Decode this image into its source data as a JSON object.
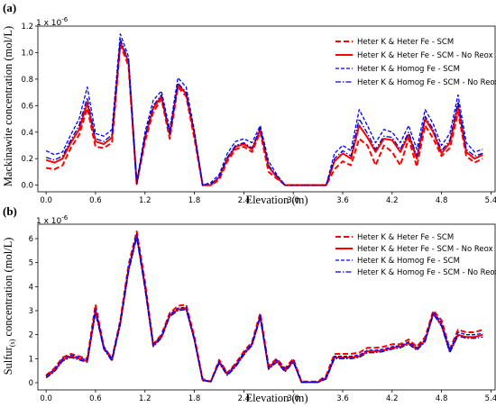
{
  "chart_data": [
    {
      "type": "line",
      "panel_label": "(a)",
      "multiplier_label": "1 x 10",
      "multiplier_exp": "-6",
      "xlabel": "Elevation (m)",
      "ylabel": "Mackinawite  concentration (mol/L)",
      "xlim": [
        -0.1,
        5.45
      ],
      "ylim": [
        -0.05,
        1.2
      ],
      "xticks": [
        "0.0",
        "0.6",
        "1.2",
        "1.8",
        "2.4",
        "3.0",
        "3.6",
        "4.2",
        "4.8",
        "5.4"
      ],
      "yticks": [
        "0.0",
        "0.2",
        "0.4",
        "0.6",
        "0.8",
        "1.0",
        "1.2"
      ],
      "legend_position": "top-right",
      "x": [
        0,
        0.1,
        0.2,
        0.3,
        0.4,
        0.5,
        0.6,
        0.7,
        0.8,
        0.9,
        1.0,
        1.1,
        1.2,
        1.3,
        1.4,
        1.5,
        1.6,
        1.7,
        1.8,
        1.9,
        2.0,
        2.1,
        2.2,
        2.3,
        2.4,
        2.5,
        2.6,
        2.7,
        2.8,
        2.9,
        3.0,
        3.1,
        3.2,
        3.3,
        3.4,
        3.5,
        3.6,
        3.7,
        3.8,
        3.9,
        4.0,
        4.1,
        4.2,
        4.3,
        4.4,
        4.5,
        4.6,
        4.7,
        4.8,
        4.9,
        5.0,
        5.1,
        5.2,
        5.3
      ],
      "series": [
        {
          "name": "Heter K & Heter Fe - SCM",
          "color": "#ff0000",
          "style": "dashed",
          "values": [
            0.13,
            0.12,
            0.15,
            0.28,
            0.38,
            0.58,
            0.29,
            0.28,
            0.32,
            1.06,
            0.9,
            0.01,
            0.33,
            0.55,
            0.65,
            0.35,
            0.74,
            0.67,
            0.35,
            0,
            0,
            0.04,
            0.18,
            0.27,
            0.29,
            0.25,
            0.4,
            0.1,
            0.05,
            0,
            0,
            0,
            0,
            0,
            0,
            0.12,
            0.18,
            0.15,
            0.35,
            0.3,
            0.15,
            0.3,
            0.25,
            0.15,
            0.35,
            0.14,
            0.45,
            0.35,
            0.22,
            0.28,
            0.55,
            0.22,
            0.17,
            0.2
          ]
        },
        {
          "name": "Heter K & Heter Fe - SCM - No Reox",
          "color": "#ff0000",
          "style": "solid",
          "values": [
            0.19,
            0.17,
            0.2,
            0.32,
            0.42,
            0.62,
            0.33,
            0.31,
            0.36,
            1.08,
            0.93,
            0.01,
            0.36,
            0.58,
            0.67,
            0.38,
            0.76,
            0.69,
            0.38,
            0,
            0,
            0.06,
            0.2,
            0.29,
            0.31,
            0.27,
            0.42,
            0.14,
            0.06,
            0,
            0,
            0,
            0,
            0,
            0,
            0.18,
            0.24,
            0.2,
            0.45,
            0.36,
            0.25,
            0.35,
            0.34,
            0.25,
            0.38,
            0.2,
            0.5,
            0.4,
            0.24,
            0.32,
            0.6,
            0.25,
            0.2,
            0.23
          ]
        },
        {
          "name": "Heter K & Homog Fe - SCM",
          "color": "#0000ff",
          "style": "dashed",
          "values": [
            0.26,
            0.23,
            0.25,
            0.38,
            0.5,
            0.74,
            0.39,
            0.37,
            0.42,
            1.14,
            0.97,
            0.02,
            0.4,
            0.64,
            0.71,
            0.42,
            0.81,
            0.74,
            0.41,
            0,
            0.02,
            0.08,
            0.24,
            0.33,
            0.35,
            0.32,
            0.45,
            0.18,
            0.08,
            0,
            0,
            0,
            0,
            0,
            0,
            0.24,
            0.3,
            0.26,
            0.57,
            0.45,
            0.32,
            0.42,
            0.4,
            0.32,
            0.45,
            0.27,
            0.57,
            0.46,
            0.3,
            0.39,
            0.68,
            0.32,
            0.25,
            0.27
          ]
        },
        {
          "name": "Heter K & Homog Fe - SCM - No Reox",
          "color": "#0000cd",
          "style": "dashdot",
          "values": [
            0.21,
            0.19,
            0.22,
            0.34,
            0.45,
            0.66,
            0.35,
            0.33,
            0.38,
            1.1,
            0.94,
            0.01,
            0.37,
            0.6,
            0.68,
            0.39,
            0.77,
            0.7,
            0.39,
            0,
            0.01,
            0.06,
            0.21,
            0.3,
            0.32,
            0.28,
            0.43,
            0.15,
            0.07,
            0,
            0,
            0,
            0,
            0,
            0,
            0.2,
            0.26,
            0.22,
            0.5,
            0.39,
            0.27,
            0.37,
            0.36,
            0.27,
            0.4,
            0.22,
            0.52,
            0.42,
            0.26,
            0.34,
            0.63,
            0.27,
            0.22,
            0.24
          ]
        }
      ]
    },
    {
      "type": "line",
      "panel_label": "(b)",
      "multiplier_label": "1 x 10",
      "multiplier_exp": "-6",
      "xlabel": "Elevation (m)",
      "ylabel_main": "Sulfur",
      "ylabel_sub": "(s)",
      "ylabel_rest": "  concentration (mol/L)",
      "xlim": [
        -0.1,
        5.45
      ],
      "ylim": [
        -0.3,
        6.6
      ],
      "xticks": [
        "0.0",
        "0.6",
        "1.2",
        "1.8",
        "2.4",
        "3.0",
        "3.6",
        "4.2",
        "4.8",
        "5.4"
      ],
      "yticks": [
        "0",
        "1",
        "2",
        "3",
        "4",
        "5",
        "6"
      ],
      "legend_position": "top-right",
      "x": [
        0,
        0.1,
        0.2,
        0.3,
        0.4,
        0.5,
        0.6,
        0.7,
        0.8,
        0.9,
        1.0,
        1.1,
        1.2,
        1.3,
        1.4,
        1.5,
        1.6,
        1.7,
        1.8,
        1.9,
        2.0,
        2.1,
        2.2,
        2.3,
        2.4,
        2.5,
        2.6,
        2.7,
        2.8,
        2.9,
        3.0,
        3.1,
        3.2,
        3.3,
        3.4,
        3.5,
        3.6,
        3.7,
        3.8,
        3.9,
        4.0,
        4.1,
        4.2,
        4.3,
        4.4,
        4.5,
        4.6,
        4.7,
        4.8,
        4.9,
        5.0,
        5.1,
        5.2,
        5.3
      ],
      "series": [
        {
          "name": "Heter K & Heter Fe - SCM",
          "color": "#ff0000",
          "style": "dashed",
          "values": [
            0.3,
            0.6,
            1.05,
            1.2,
            1.1,
            1.0,
            3.25,
            1.5,
            1.0,
            2.6,
            4.9,
            6.3,
            4.2,
            1.6,
            2.0,
            2.9,
            3.2,
            3.25,
            1.9,
            0.15,
            0.05,
            0.95,
            0.4,
            0.8,
            1.3,
            1.7,
            2.9,
            0.7,
            1.0,
            0.6,
            1.0,
            0.05,
            0.05,
            0.05,
            0.3,
            1.2,
            1.2,
            1.2,
            1.25,
            1.45,
            1.45,
            1.5,
            1.6,
            1.6,
            1.8,
            1.5,
            1.9,
            3.0,
            2.6,
            1.4,
            2.2,
            2.1,
            2.1,
            2.2
          ]
        },
        {
          "name": "Heter K & Heter Fe - SCM - No Reox",
          "color": "#ff0000",
          "style": "solid",
          "values": [
            0.25,
            0.5,
            0.95,
            1.1,
            1.0,
            0.9,
            3.0,
            1.45,
            0.95,
            2.5,
            4.7,
            6.15,
            4.0,
            1.55,
            1.9,
            2.8,
            3.05,
            3.1,
            1.8,
            0.1,
            0.05,
            0.85,
            0.35,
            0.7,
            1.2,
            1.6,
            2.75,
            0.6,
            0.9,
            0.5,
            0.9,
            0.02,
            0.02,
            0.02,
            0.2,
            1.05,
            1.05,
            1.05,
            1.1,
            1.3,
            1.3,
            1.35,
            1.45,
            1.5,
            1.65,
            1.4,
            1.75,
            2.9,
            2.4,
            1.3,
            2.0,
            1.9,
            1.9,
            2.0
          ]
        },
        {
          "name": "Heter K & Homog Fe - SCM",
          "color": "#0000ff",
          "style": "dashed",
          "values": [
            0.3,
            0.55,
            1.0,
            1.15,
            1.05,
            0.95,
            3.1,
            1.5,
            1.0,
            2.55,
            4.8,
            6.2,
            4.1,
            1.6,
            1.95,
            2.85,
            3.1,
            3.15,
            1.85,
            0.12,
            0.05,
            0.9,
            0.4,
            0.75,
            1.25,
            1.65,
            2.8,
            0.65,
            0.95,
            0.55,
            0.95,
            0.03,
            0.03,
            0.03,
            0.25,
            1.1,
            1.1,
            1.1,
            1.15,
            1.35,
            1.35,
            1.4,
            1.5,
            1.55,
            1.7,
            1.45,
            1.8,
            2.95,
            2.5,
            1.35,
            2.1,
            2.0,
            2.0,
            2.05
          ]
        },
        {
          "name": "Heter K & Homog Fe - SCM - No Reox",
          "color": "#0000cd",
          "style": "dashdot",
          "values": [
            0.2,
            0.45,
            0.9,
            1.05,
            0.95,
            0.85,
            2.9,
            1.4,
            0.9,
            2.4,
            4.6,
            6.05,
            3.9,
            1.5,
            1.85,
            2.75,
            3.0,
            3.05,
            1.75,
            0.08,
            0.04,
            0.8,
            0.3,
            0.65,
            1.15,
            1.55,
            2.7,
            0.55,
            0.85,
            0.45,
            0.85,
            0.02,
            0.02,
            0.02,
            0.15,
            1.0,
            1.0,
            1.0,
            1.05,
            1.25,
            1.25,
            1.3,
            1.4,
            1.45,
            1.6,
            1.35,
            1.7,
            2.85,
            2.35,
            1.25,
            1.95,
            1.85,
            1.85,
            1.9
          ]
        }
      ]
    }
  ]
}
